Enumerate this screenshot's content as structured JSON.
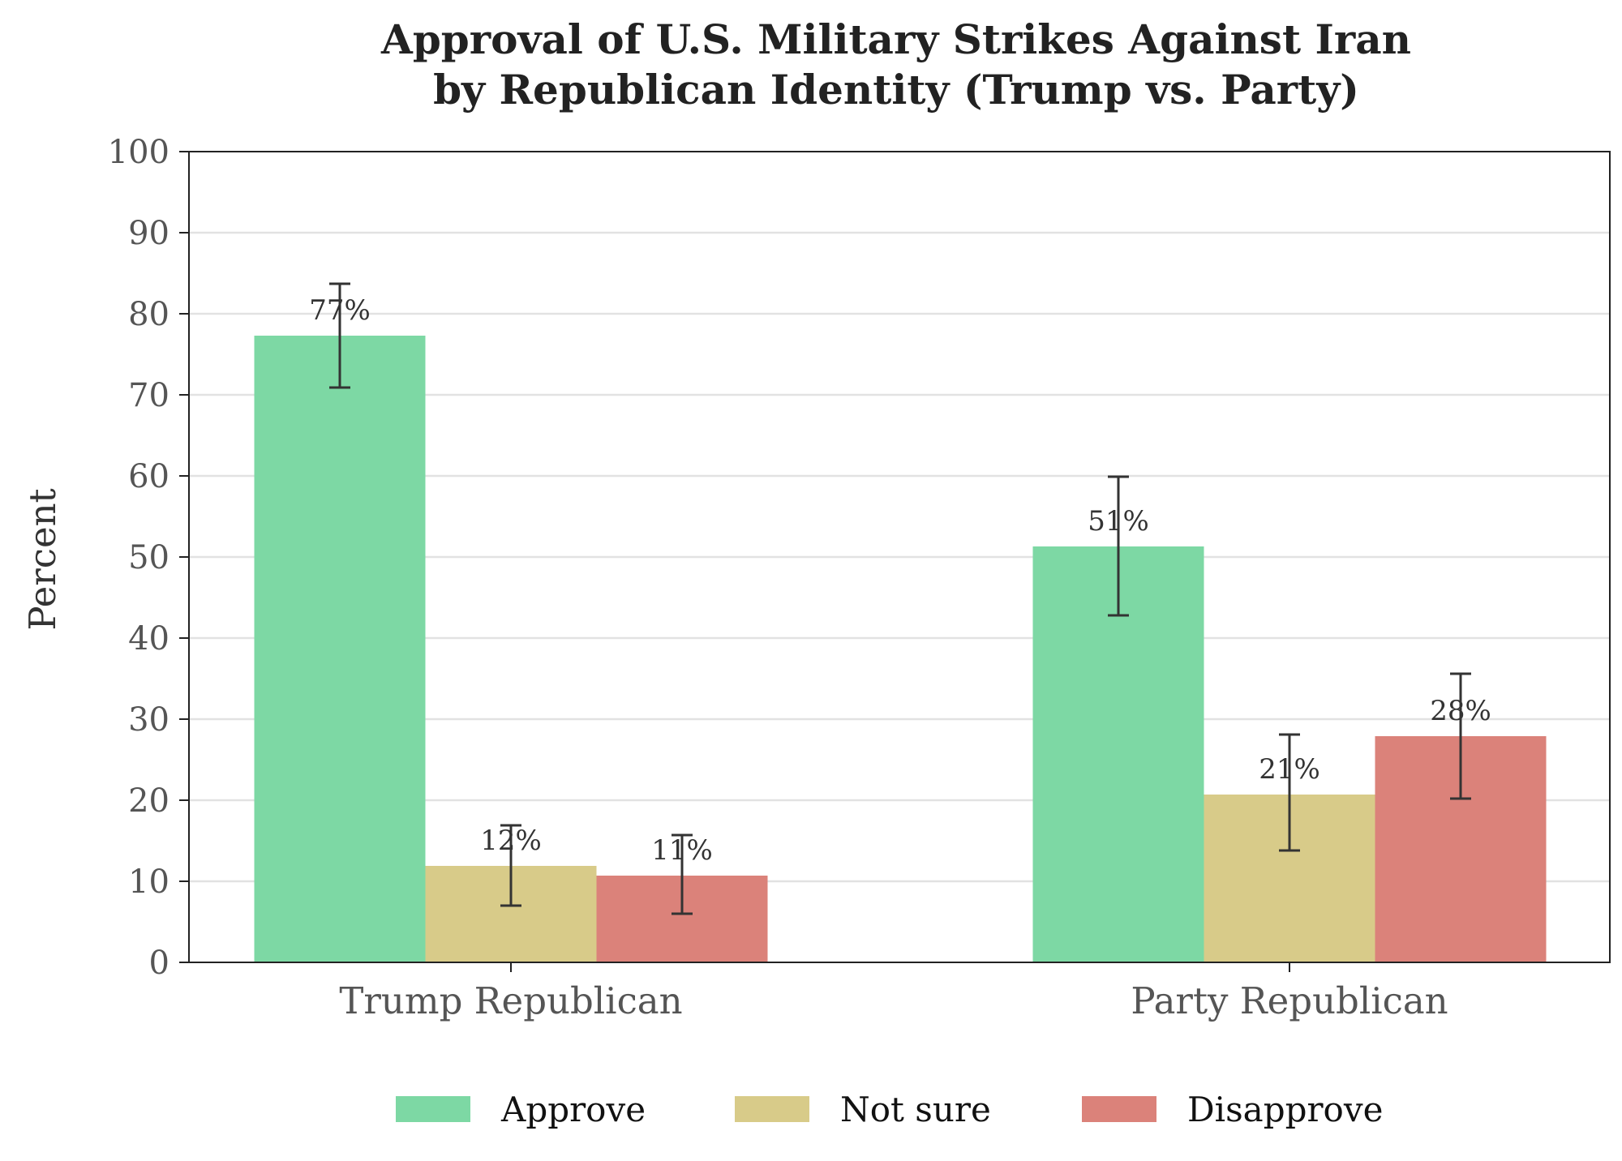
{
  "chart_data": {
    "type": "bar",
    "title": "Approval of U.S. Military Strikes Against Iran",
    "subtitle": "by Republican Identity (Trump vs. Party)",
    "xlabel": "",
    "ylabel": "Percent",
    "ylim": [
      0,
      100
    ],
    "yticks": [
      0,
      10,
      20,
      30,
      40,
      50,
      60,
      70,
      80,
      90,
      100
    ],
    "grid": true,
    "legend_position": "bottom-center",
    "categories": [
      "Trump Republican",
      "Party Republican"
    ],
    "series": [
      {
        "name": "Approve",
        "color": "#7dd8a4",
        "values": [
          77.3,
          51.3
        ],
        "error_low": [
          70.9,
          42.8
        ],
        "error_high": [
          83.7,
          59.9
        ],
        "labels": [
          "77%",
          "51%"
        ]
      },
      {
        "name": "Not sure",
        "color": "#d8cb89",
        "values": [
          11.9,
          20.7
        ],
        "error_low": [
          7.0,
          13.8
        ],
        "error_high": [
          16.9,
          28.1
        ],
        "labels": [
          "12%",
          "21%"
        ]
      },
      {
        "name": "Disapprove",
        "color": "#db827a",
        "values": [
          10.7,
          27.9
        ],
        "error_low": [
          6.0,
          20.2
        ],
        "error_high": [
          15.7,
          35.6
        ],
        "labels": [
          "11%",
          "28%"
        ]
      }
    ]
  }
}
